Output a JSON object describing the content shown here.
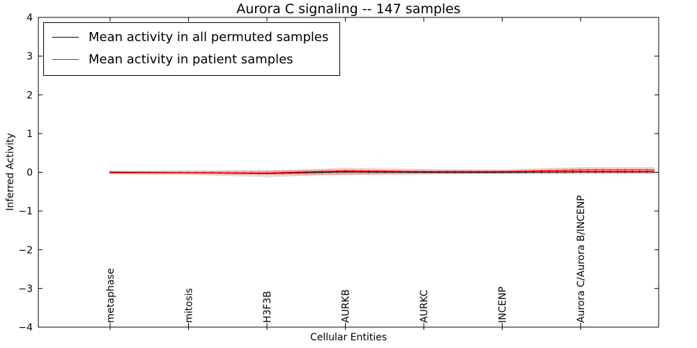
{
  "chart_data": {
    "type": "line",
    "title": "Aurora C signaling -- 147 samples",
    "xlabel": "Cellular Entities",
    "ylabel": "Inferred Activity",
    "ylim": [
      -4,
      4
    ],
    "yticks": [
      4,
      3,
      2,
      1,
      0,
      -1,
      -2,
      -3,
      -4
    ],
    "grid": false,
    "legend_position": "upper left",
    "categories": [
      "metaphase",
      "mitosis",
      "H3F3B",
      "AURKB",
      "AURKC",
      "INCENP",
      "Aurora C/Aurora B/INCENP"
    ],
    "series": [
      {
        "name": "Mean activity in all permuted samples",
        "color": "#000000",
        "band_color": "#bbbbbb",
        "band_opacity": 0.45,
        "values": [
          0,
          -0.01,
          -0.03,
          0.01,
          0,
          0,
          0.01
        ],
        "band_lower": [
          -0.05,
          -0.07,
          -0.13,
          -0.06,
          -0.05,
          -0.05,
          -0.05
        ],
        "band_upper": [
          0.04,
          0.04,
          0.06,
          0.05,
          0.04,
          0.04,
          0.05
        ]
      },
      {
        "name": "Mean activity in patient samples",
        "color": "#ff0000",
        "band_color": "#ff0000",
        "band_opacity": 0.25,
        "values": [
          -0.01,
          -0.01,
          -0.02,
          0.04,
          0.02,
          0.02,
          0.06
        ],
        "band_lower": [
          -0.05,
          -0.05,
          -0.07,
          -0.07,
          -0.05,
          -0.04,
          -0.03
        ],
        "band_upper": [
          0.03,
          0.03,
          0.04,
          0.11,
          0.08,
          0.07,
          0.13
        ]
      }
    ]
  }
}
